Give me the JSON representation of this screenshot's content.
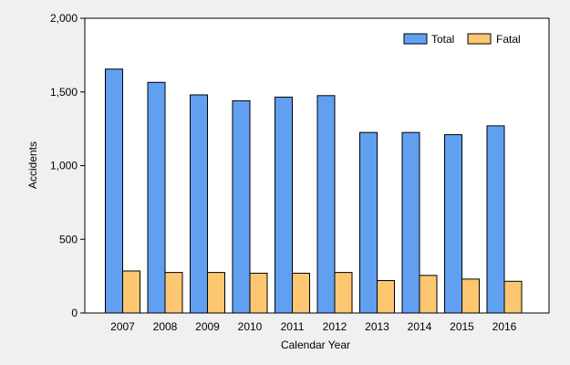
{
  "chart_data": {
    "type": "bar",
    "categories": [
      "2007",
      "2008",
      "2009",
      "2010",
      "2011",
      "2012",
      "2013",
      "2014",
      "2015",
      "2016"
    ],
    "series": [
      {
        "name": "Total",
        "color": "#619ff1",
        "values": [
          1655,
          1565,
          1480,
          1440,
          1465,
          1475,
          1225,
          1225,
          1210,
          1270
        ]
      },
      {
        "name": "Fatal",
        "color": "#fdc671",
        "values": [
          285,
          275,
          275,
          270,
          270,
          275,
          220,
          255,
          230,
          215
        ]
      }
    ],
    "title": "",
    "xlabel": "Calendar Year",
    "ylabel": "Accidents",
    "ylim": [
      0,
      2000
    ],
    "yticks": [
      0,
      500,
      1000,
      1500,
      2000
    ],
    "ytick_labels": [
      "0",
      "500",
      "1,000",
      "1,500",
      "2,000"
    ],
    "grid": false,
    "legend_position": "top-right",
    "plot_background": "#ffffff",
    "page_background": "#f0f0f0"
  }
}
